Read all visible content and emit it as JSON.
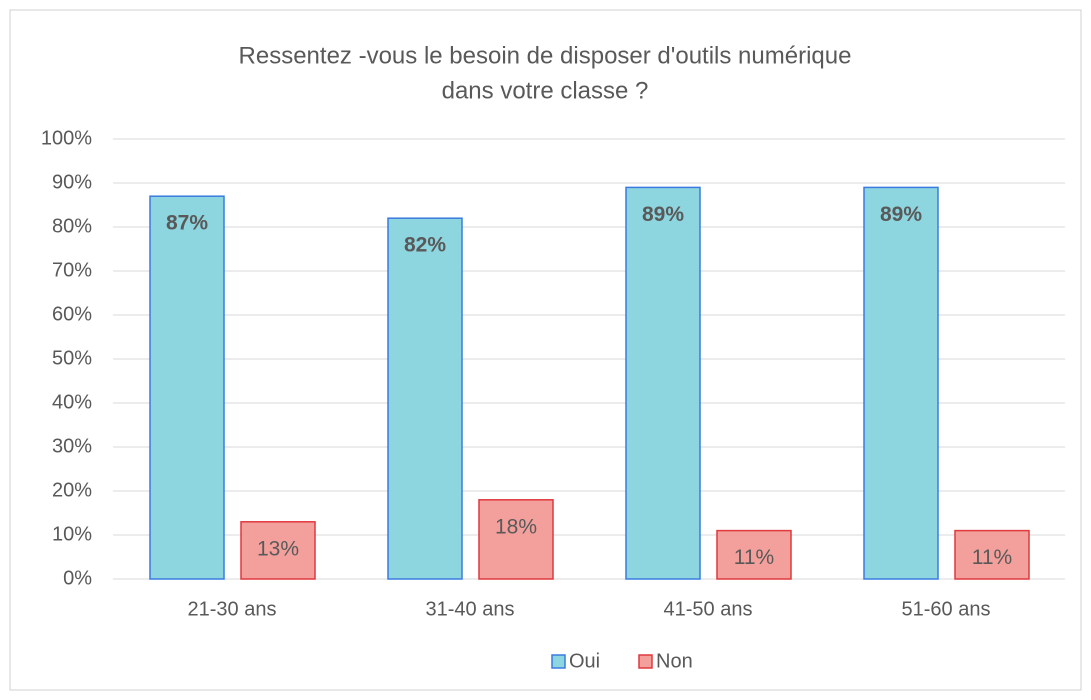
{
  "chart_data": {
    "type": "bar",
    "title": [
      "Ressentez -vous le besoin de disposer d'outils numérique",
      "dans votre classe ?"
    ],
    "categories": [
      "21-30 ans",
      "31-40 ans",
      "41-50 ans",
      "51-60 ans"
    ],
    "series": [
      {
        "name": "Oui",
        "color": "#8dd5df",
        "edge": "#3a7be0",
        "values": [
          87,
          82,
          89,
          89
        ],
        "value_labels": [
          "87%",
          "82%",
          "89%",
          "89%"
        ]
      },
      {
        "name": "Non",
        "color": "#f3a09c",
        "edge": "#e0393e",
        "values": [
          13,
          18,
          11,
          11
        ],
        "value_labels": [
          "13%",
          "18%",
          "11%",
          "11%"
        ]
      }
    ],
    "ylim": [
      0,
      100
    ],
    "yticks": [
      {
        "value": 0,
        "label": "0%"
      },
      {
        "value": 10,
        "label": "10%"
      },
      {
        "value": 20,
        "label": "20%"
      },
      {
        "value": 30,
        "label": "30%"
      },
      {
        "value": 40,
        "label": "40%"
      },
      {
        "value": 50,
        "label": "50%"
      },
      {
        "value": 60,
        "label": "60%"
      },
      {
        "value": 70,
        "label": "70%"
      },
      {
        "value": 80,
        "label": "80%"
      },
      {
        "value": 90,
        "label": "90%"
      },
      {
        "value": 100,
        "label": "100%"
      }
    ],
    "grid": true,
    "legend": "bottom"
  }
}
